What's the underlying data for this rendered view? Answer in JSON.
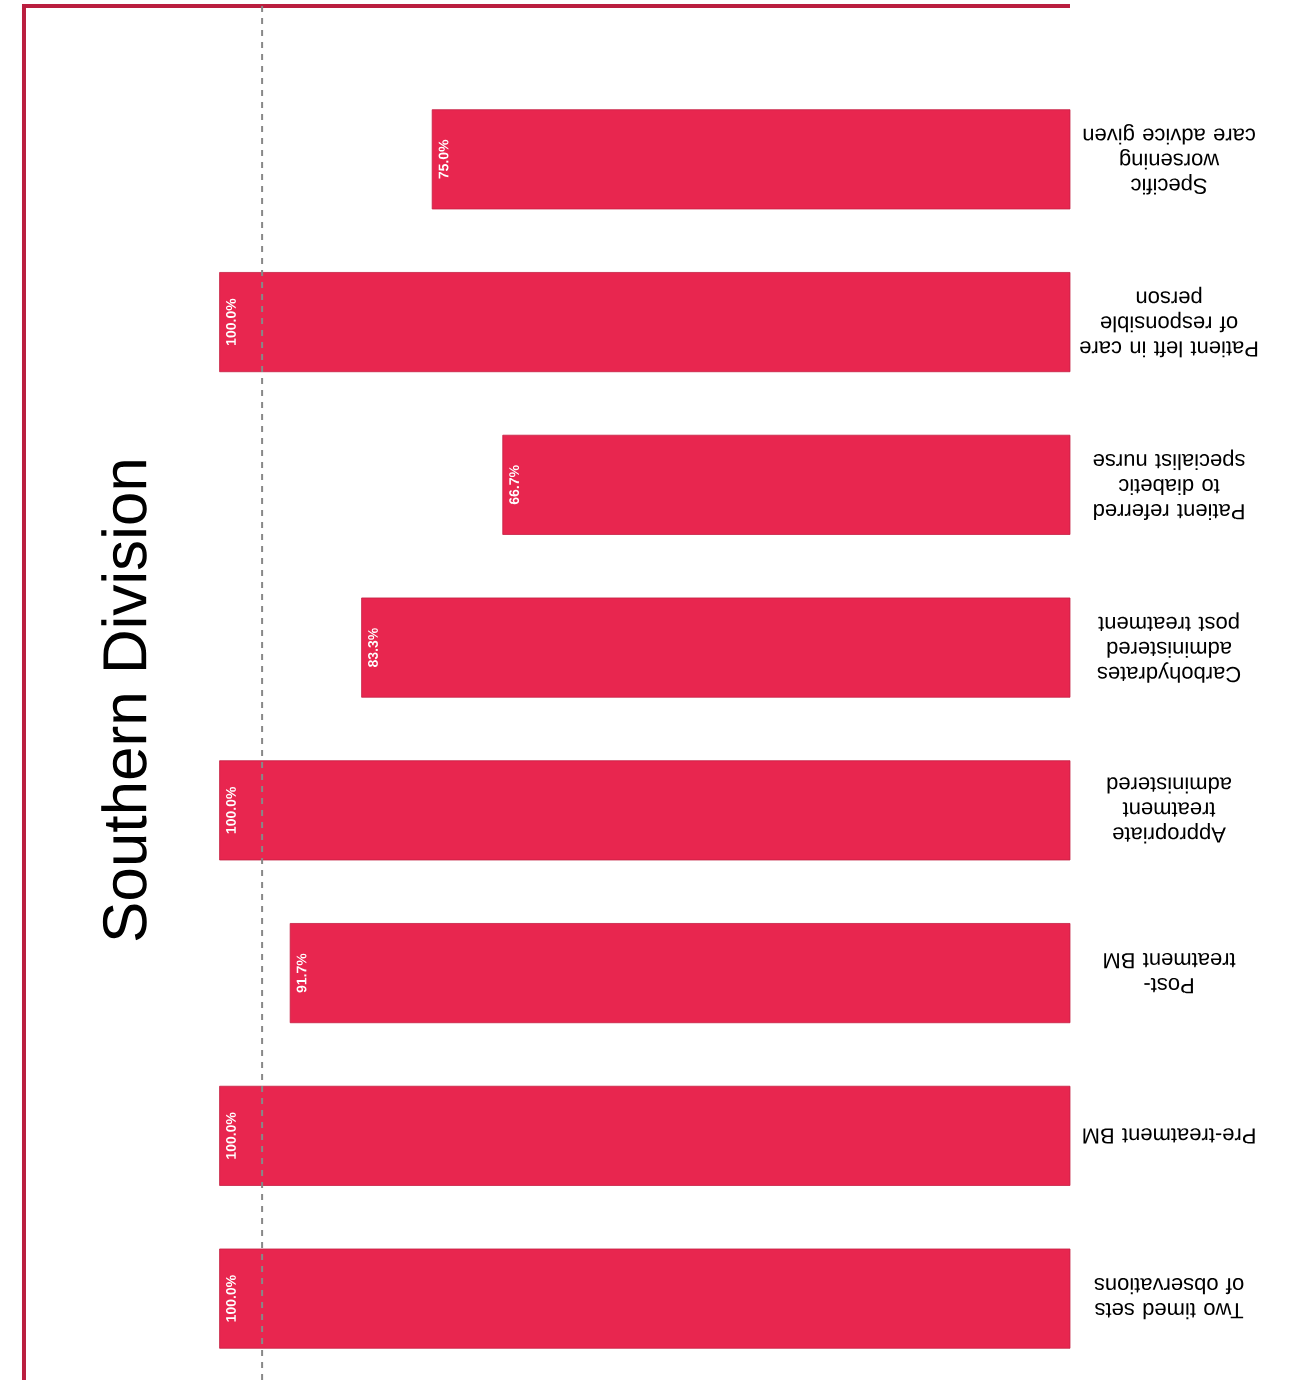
{
  "chart_data": {
    "type": "bar",
    "orientation": "horizontal",
    "title": "Southern Division",
    "categories": [
      "Specific worsening care advice given",
      "Patient left in care of responsible person",
      "Patient referred to diabetic specialist nurse",
      "Carbohydrates administered post treatment",
      "Appropriate treatment administered",
      "Post-treatment BM",
      "Pre-treatment BM",
      "Two timed sets of observations"
    ],
    "values": [
      75.0,
      100.0,
      66.7,
      83.3,
      100.0,
      91.7,
      100.0,
      100.0
    ],
    "value_labels": [
      "75.0%",
      "100.0%",
      "66.7%",
      "83.3%",
      "100.0%",
      "91.7%",
      "100.0%",
      "100.0%"
    ],
    "color": "#e8264f",
    "xlim": [
      123,
      0
    ],
    "tick_labels": "y",
    "ref_lines": [
      {
        "axis": "x",
        "value": 95,
        "color": "#888888",
        "line_style": "dashed"
      }
    ]
  }
}
